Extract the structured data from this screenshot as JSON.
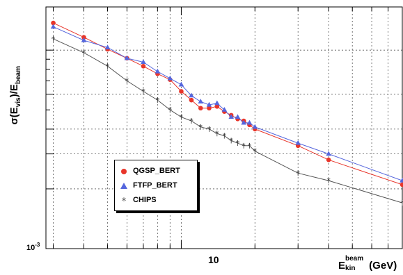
{
  "chart_data": {
    "type": "line",
    "ylabel_parts": {
      "sigma": "σ(E",
      "vis": "vis",
      "mid": ")/E",
      "beam": "beam"
    },
    "xlabel_parts": {
      "E": "E",
      "sup": "beam",
      "sub": "kin",
      "unit": " (GeV)"
    },
    "x_scale": "log",
    "y_scale": "log",
    "xlim": [
      2.8,
      80
    ],
    "ylim": [
      0.001,
      0.0165
    ],
    "x_tick_labels": [
      "10"
    ],
    "y_tick_labels": [
      "10⁻³"
    ],
    "y_tick_label_parts": {
      "base": "10",
      "exp": "-3"
    },
    "grid": true,
    "legend_position": "lower-left",
    "series": [
      {
        "name": "QGSP_BERT",
        "color": "#e8352a",
        "marker": "circle",
        "x": [
          3,
          4,
          5,
          6,
          7,
          8,
          9,
          10,
          11,
          12,
          13,
          14,
          15,
          16,
          17,
          18,
          19,
          20,
          30,
          40,
          80
        ],
        "y": [
          0.0137,
          0.0116,
          0.0101,
          0.0091,
          0.0083,
          0.0076,
          0.0071,
          0.0062,
          0.0056,
          0.0051,
          0.0051,
          0.0052,
          0.0049,
          0.0047,
          0.0045,
          0.0044,
          0.0042,
          0.004,
          0.0033,
          0.0028,
          0.0021
        ]
      },
      {
        "name": "FTFP_BERT",
        "color": "#5566dd",
        "marker": "triangle",
        "x": [
          3,
          4,
          5,
          6,
          7,
          8,
          9,
          10,
          11,
          12,
          13,
          14,
          15,
          16,
          17,
          18,
          19,
          20,
          30,
          40,
          80
        ],
        "y": [
          0.0131,
          0.0112,
          0.0103,
          0.0091,
          0.0087,
          0.0078,
          0.0072,
          0.0067,
          0.0059,
          0.0055,
          0.0053,
          0.0054,
          0.005,
          0.0046,
          0.0046,
          0.0043,
          0.0043,
          0.0041,
          0.0034,
          0.003,
          0.0022
        ]
      },
      {
        "name": "CHIPS",
        "color": "#555555",
        "marker": "star",
        "x": [
          3,
          4,
          5,
          6,
          7,
          8,
          9,
          10,
          11,
          12,
          13,
          14,
          15,
          16,
          17,
          18,
          19,
          20,
          30,
          40,
          80
        ],
        "y": [
          0.0114,
          0.0097,
          0.0083,
          0.007,
          0.0062,
          0.0056,
          0.005,
          0.0046,
          0.0044,
          0.0041,
          0.004,
          0.0038,
          0.0037,
          0.0035,
          0.0034,
          0.0033,
          0.0033,
          0.0031,
          0.0024,
          0.0022,
          0.0017
        ]
      }
    ]
  }
}
